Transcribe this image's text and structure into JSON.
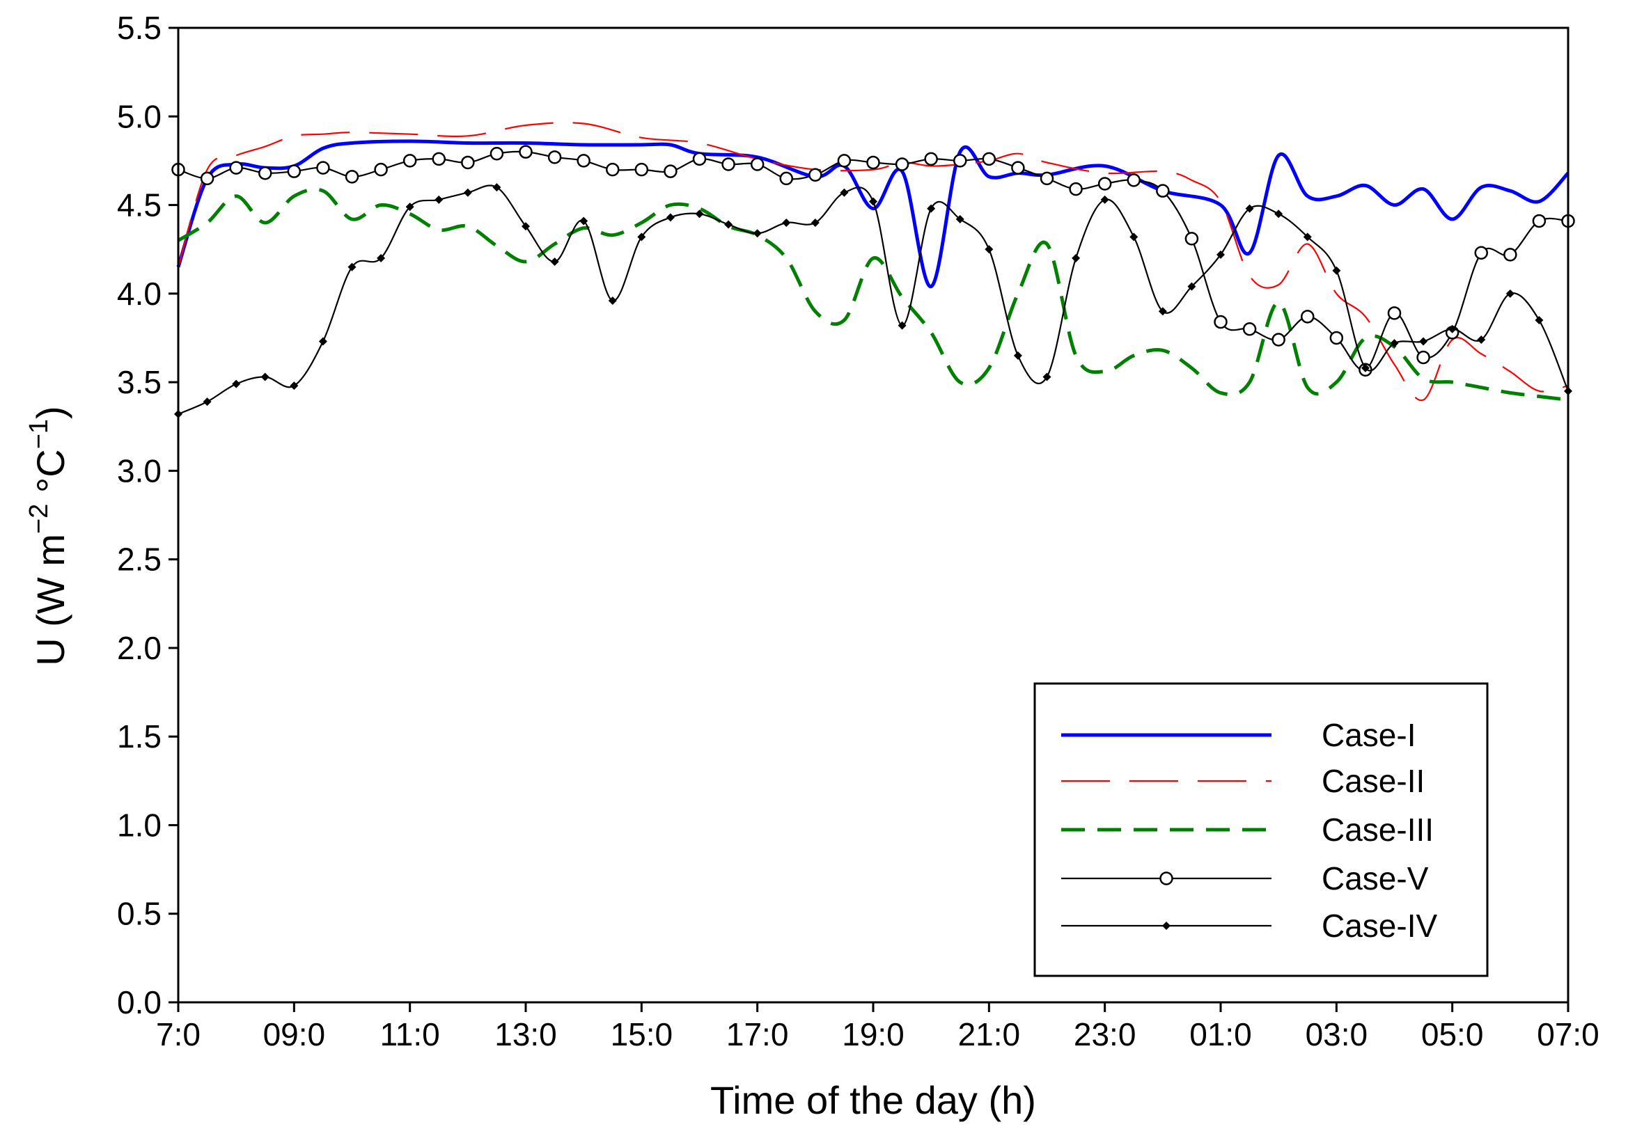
{
  "chart_data": {
    "type": "line",
    "title": "",
    "xlabel": "Time of the day (h)",
    "ylabel": "U (W m−2 °C−1)",
    "ylabel_parts": {
      "main": "U (W m",
      "sup1": "−2",
      "mid": " °C",
      "sup2": "−1",
      "end": ")"
    },
    "x_units": "hours since 07:00",
    "xlim": [
      0,
      24
    ],
    "ylim": [
      0,
      5.5
    ],
    "x_ticks": [
      {
        "value": 0,
        "label": "7:0"
      },
      {
        "value": 2,
        "label": "09:0"
      },
      {
        "value": 4,
        "label": "11:0"
      },
      {
        "value": 6,
        "label": "13:0"
      },
      {
        "value": 8,
        "label": "15:0"
      },
      {
        "value": 10,
        "label": "17:0"
      },
      {
        "value": 12,
        "label": "19:0"
      },
      {
        "value": 14,
        "label": "21:0"
      },
      {
        "value": 16,
        "label": "23:0"
      },
      {
        "value": 18,
        "label": "01:0"
      },
      {
        "value": 20,
        "label": "03:0"
      },
      {
        "value": 22,
        "label": "05:0"
      },
      {
        "value": 24,
        "label": "07:0"
      }
    ],
    "y_ticks": [
      "0.0",
      "0.5",
      "1.0",
      "1.5",
      "2.0",
      "2.5",
      "3.0",
      "3.5",
      "4.0",
      "4.5",
      "5.0",
      "5.5"
    ],
    "grid": false,
    "legend_position": "bottom-right",
    "series": [
      {
        "name": "Case-I",
        "color": "#0000ff",
        "style": "solid-thick",
        "marker": "none",
        "x": [
          0,
          0.5,
          1,
          1.5,
          2,
          2.5,
          3,
          4,
          5,
          6,
          7,
          8,
          8.5,
          9,
          10,
          11,
          11.5,
          12,
          12.5,
          13,
          13.5,
          14,
          14.5,
          15,
          16,
          17,
          18,
          18.5,
          19,
          19.5,
          20,
          20.5,
          21,
          21.5,
          22,
          22.5,
          23,
          23.5,
          24
        ],
        "y": [
          4.15,
          4.65,
          4.73,
          4.71,
          4.72,
          4.82,
          4.85,
          4.86,
          4.85,
          4.85,
          4.84,
          4.84,
          4.84,
          4.79,
          4.77,
          4.66,
          4.72,
          4.48,
          4.69,
          4.04,
          4.8,
          4.66,
          4.68,
          4.67,
          4.72,
          4.58,
          4.5,
          4.23,
          4.78,
          4.55,
          4.55,
          4.61,
          4.5,
          4.59,
          4.42,
          4.6,
          4.58,
          4.52,
          4.68
        ]
      },
      {
        "name": "Case-II",
        "color": "#ff0000",
        "style": "dash-long-thin",
        "marker": "none",
        "x": [
          0,
          0.5,
          1,
          1.5,
          2,
          2.5,
          3,
          4,
          5,
          6,
          7,
          8,
          9,
          10,
          11,
          12,
          12.5,
          13,
          13.5,
          14,
          14.5,
          15,
          16,
          17,
          17.5,
          18,
          18.5,
          19,
          19.5,
          20,
          20.5,
          21,
          21.5,
          22,
          22.5,
          23,
          23.5,
          24
        ],
        "y": [
          4.15,
          4.7,
          4.78,
          4.83,
          4.89,
          4.9,
          4.91,
          4.9,
          4.89,
          4.95,
          4.96,
          4.88,
          4.85,
          4.76,
          4.7,
          4.7,
          4.74,
          4.72,
          4.73,
          4.75,
          4.79,
          4.74,
          4.68,
          4.69,
          4.64,
          4.52,
          4.1,
          4.05,
          4.28,
          4.0,
          3.87,
          3.6,
          3.4,
          3.74,
          3.66,
          3.56,
          3.45,
          3.48
        ]
      },
      {
        "name": "Case-III",
        "color": "#008000",
        "style": "dash-thick",
        "marker": "none",
        "x": [
          0,
          0.5,
          1,
          1.5,
          2,
          2.5,
          3,
          3.5,
          4,
          4.5,
          5,
          5.5,
          6,
          6.5,
          7,
          7.5,
          8,
          8.5,
          9,
          9.5,
          10,
          10.5,
          11,
          11.5,
          12,
          12.5,
          13,
          13.5,
          14,
          14.5,
          15,
          15.5,
          16,
          16.5,
          17,
          17.5,
          18,
          18.5,
          19,
          19.5,
          20,
          20.5,
          21,
          21.5,
          22,
          22.5,
          23,
          23.5,
          24
        ],
        "y": [
          4.3,
          4.4,
          4.55,
          4.4,
          4.55,
          4.58,
          4.42,
          4.5,
          4.45,
          4.36,
          4.38,
          4.27,
          4.18,
          4.28,
          4.37,
          4.33,
          4.4,
          4.5,
          4.48,
          4.38,
          4.33,
          4.2,
          3.9,
          3.85,
          4.2,
          3.98,
          3.78,
          3.5,
          3.58,
          4.0,
          4.28,
          3.65,
          3.56,
          3.65,
          3.68,
          3.58,
          3.44,
          3.5,
          3.95,
          3.47,
          3.5,
          3.75,
          3.7,
          3.52,
          3.5,
          3.47,
          3.44,
          3.42,
          3.4
        ]
      },
      {
        "name": "Case-V",
        "color": "#000000",
        "style": "solid-thin",
        "marker": "open-circle",
        "x": [
          0,
          0.5,
          1,
          1.5,
          2,
          2.5,
          3,
          3.5,
          4,
          4.5,
          5,
          5.5,
          6,
          6.5,
          7,
          7.5,
          8,
          8.5,
          9,
          9.5,
          10,
          10.5,
          11,
          11.5,
          12,
          12.5,
          13,
          13.5,
          14,
          14.5,
          15,
          15.5,
          16,
          16.5,
          17,
          17.5,
          18,
          18.5,
          19,
          19.5,
          20,
          20.5,
          21,
          21.5,
          22,
          22.5,
          23,
          23.5,
          24
        ],
        "y": [
          4.7,
          4.65,
          4.71,
          4.68,
          4.69,
          4.71,
          4.66,
          4.7,
          4.75,
          4.76,
          4.74,
          4.79,
          4.8,
          4.77,
          4.75,
          4.7,
          4.7,
          4.69,
          4.76,
          4.73,
          4.73,
          4.65,
          4.67,
          4.75,
          4.74,
          4.73,
          4.76,
          4.75,
          4.76,
          4.71,
          4.65,
          4.59,
          4.62,
          4.64,
          4.58,
          4.31,
          3.84,
          3.8,
          3.74,
          3.87,
          3.75,
          3.57,
          3.89,
          3.64,
          3.78,
          4.23,
          4.22,
          4.41,
          4.41
        ]
      },
      {
        "name": "Case-IV",
        "color": "#000000",
        "style": "solid-thin",
        "marker": "filled-diamond",
        "x": [
          0,
          0.5,
          1,
          1.5,
          2,
          2.5,
          3,
          3.5,
          4,
          4.5,
          5,
          5.5,
          6,
          6.5,
          7,
          7.5,
          8,
          8.5,
          9,
          9.5,
          10,
          10.5,
          11,
          11.5,
          12,
          12.5,
          13,
          13.5,
          14,
          14.5,
          15,
          15.5,
          16,
          16.5,
          17,
          17.5,
          18,
          18.5,
          19,
          19.5,
          20,
          20.5,
          21,
          21.5,
          22,
          22.5,
          23,
          23.5,
          24
        ],
        "y": [
          3.32,
          3.39,
          3.49,
          3.53,
          3.48,
          3.73,
          4.15,
          4.2,
          4.49,
          4.53,
          4.57,
          4.6,
          4.38,
          4.18,
          4.41,
          3.96,
          4.32,
          4.43,
          4.45,
          4.39,
          4.34,
          4.4,
          4.4,
          4.57,
          4.52,
          3.82,
          4.48,
          4.42,
          4.25,
          3.65,
          3.53,
          4.2,
          4.53,
          4.32,
          3.9,
          4.04,
          4.22,
          4.48,
          4.45,
          4.32,
          4.13,
          3.58,
          3.72,
          3.73,
          3.8,
          3.74,
          4.0,
          3.85,
          3.45
        ]
      }
    ]
  }
}
